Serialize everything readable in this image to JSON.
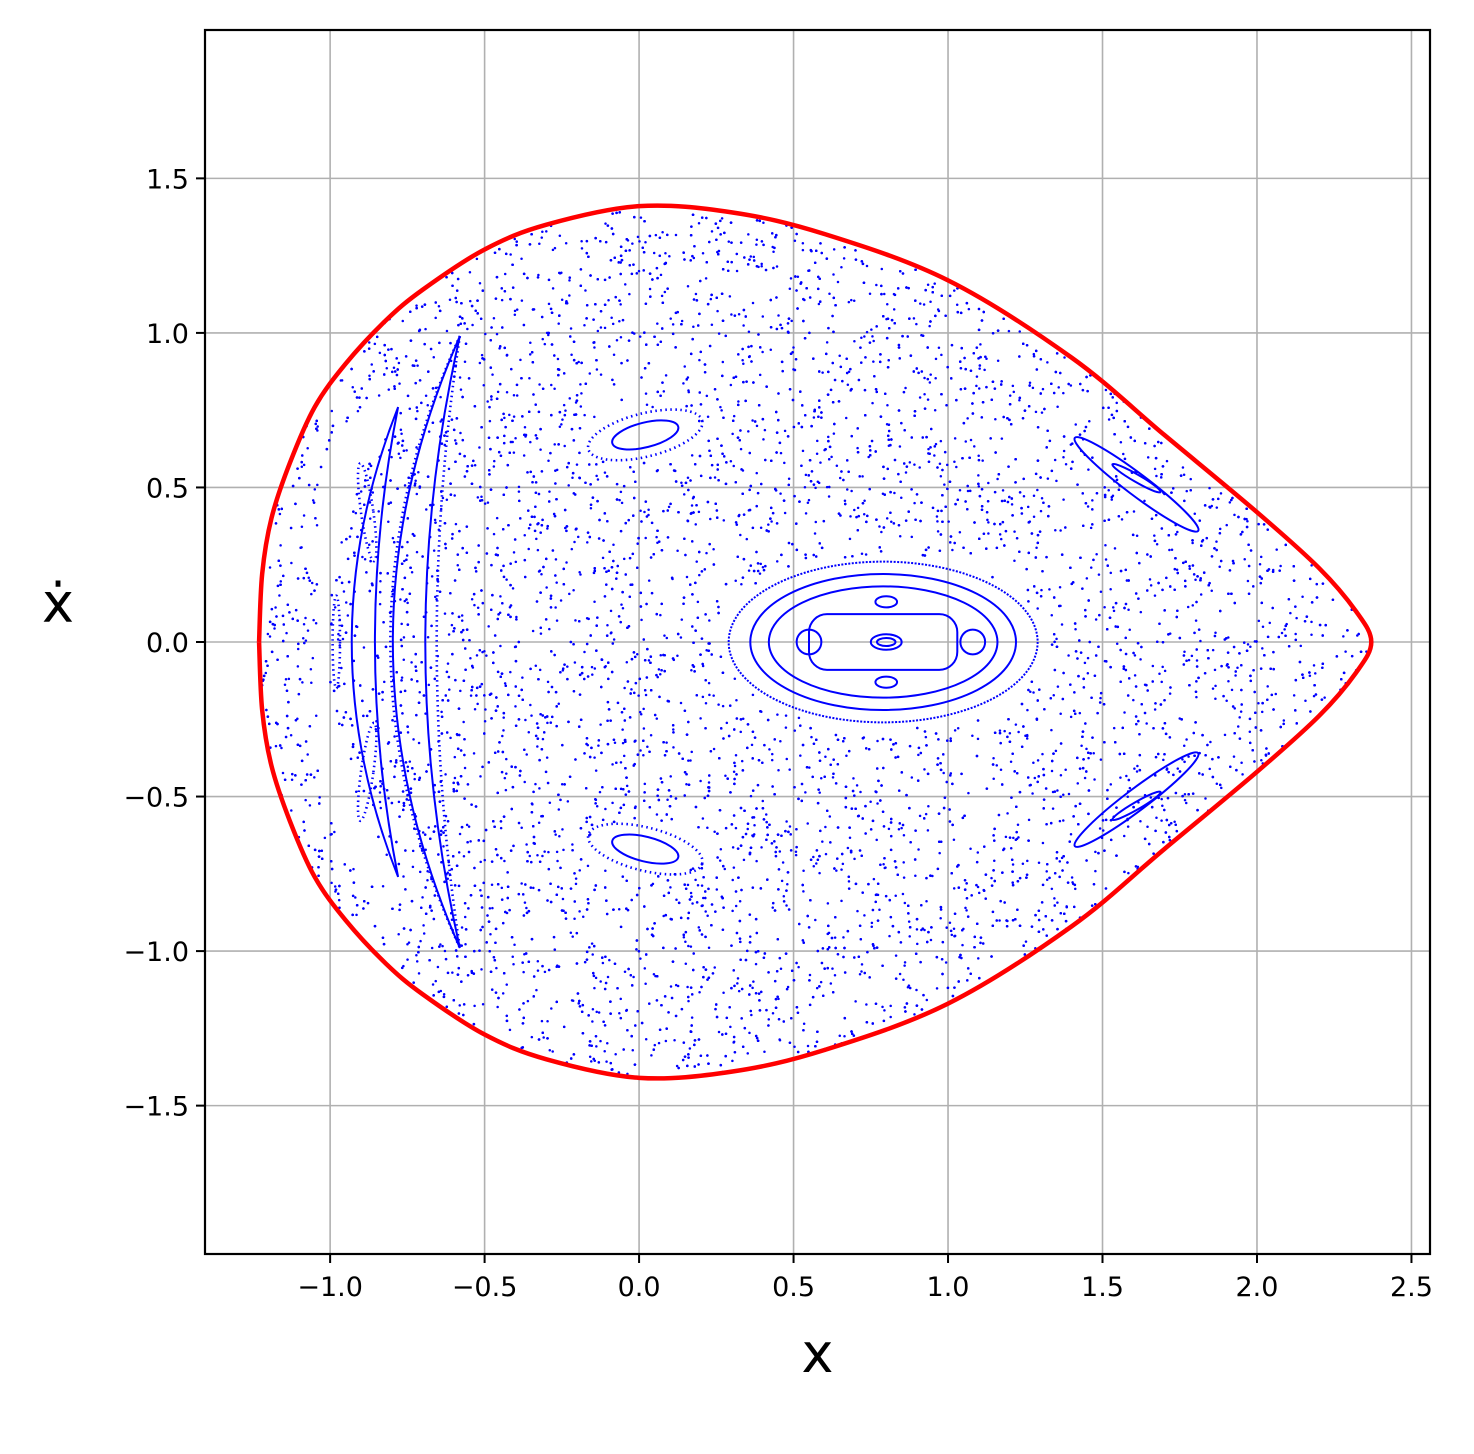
{
  "chart_data": {
    "type": "scatter",
    "title": "",
    "xlabel": "x",
    "ylabel": "ẋ",
    "xlim": [
      -1.405,
      2.56
    ],
    "ylim": [
      -1.98,
      1.98
    ],
    "xticks": [
      -1.0,
      -0.5,
      0.0,
      0.5,
      1.0,
      1.5,
      2.0,
      2.5
    ],
    "yticks": [
      -1.5,
      -1.0,
      -0.5,
      0.0,
      0.5,
      1.0,
      1.5
    ],
    "xtick_labels": [
      "−1.0",
      "−0.5",
      "0.0",
      "0.5",
      "1.0",
      "1.5",
      "2.0",
      "2.5"
    ],
    "ytick_labels": [
      "−1.5",
      "−1.0",
      "−0.5",
      "0.0",
      "0.5",
      "1.0",
      "1.5"
    ],
    "grid": true,
    "colors": {
      "points": "#0000ff",
      "boundary": "#ff0000",
      "grid": "#b0b0b0"
    },
    "boundary_curve": {
      "name": "",
      "points": [
        [
          -1.23,
          0.0
        ],
        [
          -1.22,
          0.22
        ],
        [
          -1.19,
          0.4
        ],
        [
          -1.13,
          0.58
        ],
        [
          -1.05,
          0.76
        ],
        [
          -0.95,
          0.9
        ],
        [
          -0.82,
          1.04
        ],
        [
          -0.7,
          1.14
        ],
        [
          -0.5,
          1.27
        ],
        [
          -0.3,
          1.35
        ],
        [
          0.0,
          1.41
        ],
        [
          0.3,
          1.39
        ],
        [
          0.6,
          1.32
        ],
        [
          1.0,
          1.17
        ],
        [
          1.4,
          0.92
        ],
        [
          1.7,
          0.67
        ],
        [
          2.0,
          0.42
        ],
        [
          2.2,
          0.24
        ],
        [
          2.32,
          0.1
        ],
        [
          2.37,
          0.0
        ],
        [
          2.32,
          -0.1
        ],
        [
          2.2,
          -0.24
        ],
        [
          2.0,
          -0.42
        ],
        [
          1.7,
          -0.67
        ],
        [
          1.4,
          -0.92
        ],
        [
          1.0,
          -1.17
        ],
        [
          0.6,
          -1.32
        ],
        [
          0.3,
          -1.39
        ],
        [
          0.0,
          -1.41
        ],
        [
          -0.3,
          -1.35
        ],
        [
          -0.5,
          -1.27
        ],
        [
          -0.7,
          -1.14
        ],
        [
          -0.82,
          -1.04
        ],
        [
          -0.95,
          -0.9
        ],
        [
          -1.05,
          -0.76
        ],
        [
          -1.13,
          -0.58
        ],
        [
          -1.19,
          -0.4
        ],
        [
          -1.22,
          -0.22
        ],
        [
          -1.23,
          0.0
        ]
      ]
    },
    "regular_orbits": [
      {
        "kind": "ellipse",
        "cx": 0.79,
        "cy": 0.0,
        "rx": 0.5,
        "ry": 0.26,
        "style": "dense"
      },
      {
        "kind": "ellipse",
        "cx": 0.79,
        "cy": 0.0,
        "rx": 0.43,
        "ry": 0.22,
        "style": "line"
      },
      {
        "kind": "ellipse",
        "cx": 0.79,
        "cy": 0.0,
        "rx": 0.37,
        "ry": 0.18,
        "style": "line"
      },
      {
        "kind": "rect",
        "cx": 0.79,
        "cy": 0.0,
        "rx": 0.24,
        "ry": 0.09,
        "style": "line"
      },
      {
        "kind": "ellipse",
        "cx": 0.8,
        "cy": 0.0,
        "rx": 0.05,
        "ry": 0.025,
        "style": "line"
      },
      {
        "kind": "ellipse",
        "cx": 0.8,
        "cy": 0.0,
        "rx": 0.03,
        "ry": 0.013,
        "style": "line"
      },
      {
        "kind": "ellipse",
        "cx": 0.55,
        "cy": 0.0,
        "rx": 0.04,
        "ry": 0.04,
        "style": "line"
      },
      {
        "kind": "ellipse",
        "cx": 1.08,
        "cy": 0.0,
        "rx": 0.04,
        "ry": 0.04,
        "style": "line"
      },
      {
        "kind": "ellipse",
        "cx": 0.8,
        "cy": 0.13,
        "rx": 0.035,
        "ry": 0.018,
        "style": "line"
      },
      {
        "kind": "ellipse",
        "cx": 0.8,
        "cy": -0.13,
        "rx": 0.035,
        "ry": 0.018,
        "style": "line"
      },
      {
        "kind": "ellipse",
        "cx": 0.02,
        "cy": 0.67,
        "rx": 0.19,
        "ry": 0.07,
        "angle": -14,
        "style": "dotted"
      },
      {
        "kind": "ellipse",
        "cx": 0.02,
        "cy": 0.67,
        "rx": 0.11,
        "ry": 0.04,
        "angle": -14,
        "style": "line"
      },
      {
        "kind": "ellipse",
        "cx": 0.02,
        "cy": -0.67,
        "rx": 0.19,
        "ry": 0.07,
        "angle": 14,
        "style": "dotted"
      },
      {
        "kind": "ellipse",
        "cx": 0.02,
        "cy": -0.67,
        "rx": 0.11,
        "ry": 0.04,
        "angle": 14,
        "style": "line"
      },
      {
        "kind": "ellipse",
        "cx": 1.61,
        "cy": 0.51,
        "rx": 0.25,
        "ry": 0.035,
        "angle": 37,
        "style": "line"
      },
      {
        "kind": "ellipse",
        "cx": 1.61,
        "cy": 0.53,
        "rx": 0.09,
        "ry": 0.012,
        "angle": 30,
        "style": "line"
      },
      {
        "kind": "ellipse",
        "cx": 1.61,
        "cy": -0.51,
        "rx": 0.25,
        "ry": 0.035,
        "angle": -37,
        "style": "line"
      },
      {
        "kind": "ellipse",
        "cx": 1.61,
        "cy": -0.53,
        "rx": 0.09,
        "ry": 0.012,
        "angle": -30,
        "style": "line"
      },
      {
        "kind": "crescent",
        "x_tip": -0.58,
        "y_tip": 0.99,
        "x_mid": -0.93,
        "thickness": 0.07,
        "style": "line"
      },
      {
        "kind": "crescent",
        "x_tip": -0.78,
        "y_tip": 0.76,
        "x_mid": -1.02,
        "thickness": 0.05,
        "style": "line"
      },
      {
        "kind": "crescent",
        "x_tip": -0.58,
        "y_tip": 0.99,
        "x_mid": -0.91,
        "thickness": 0.1,
        "style": "dotted"
      },
      {
        "kind": "ellipse",
        "cx": -0.98,
        "cy": 0.0,
        "rx": 0.012,
        "ry": 0.15,
        "style": "dotted"
      },
      {
        "kind": "ellipse",
        "cx": -0.88,
        "cy": 0.42,
        "rx": 0.02,
        "ry": 0.16,
        "angle": -8,
        "style": "dotted"
      },
      {
        "kind": "ellipse",
        "cx": -0.88,
        "cy": -0.42,
        "rx": 0.02,
        "ry": 0.16,
        "angle": 8,
        "style": "dotted"
      }
    ],
    "chaotic_sea": {
      "count": 9000,
      "region": "inside boundary_curve, outside regular islands"
    }
  }
}
